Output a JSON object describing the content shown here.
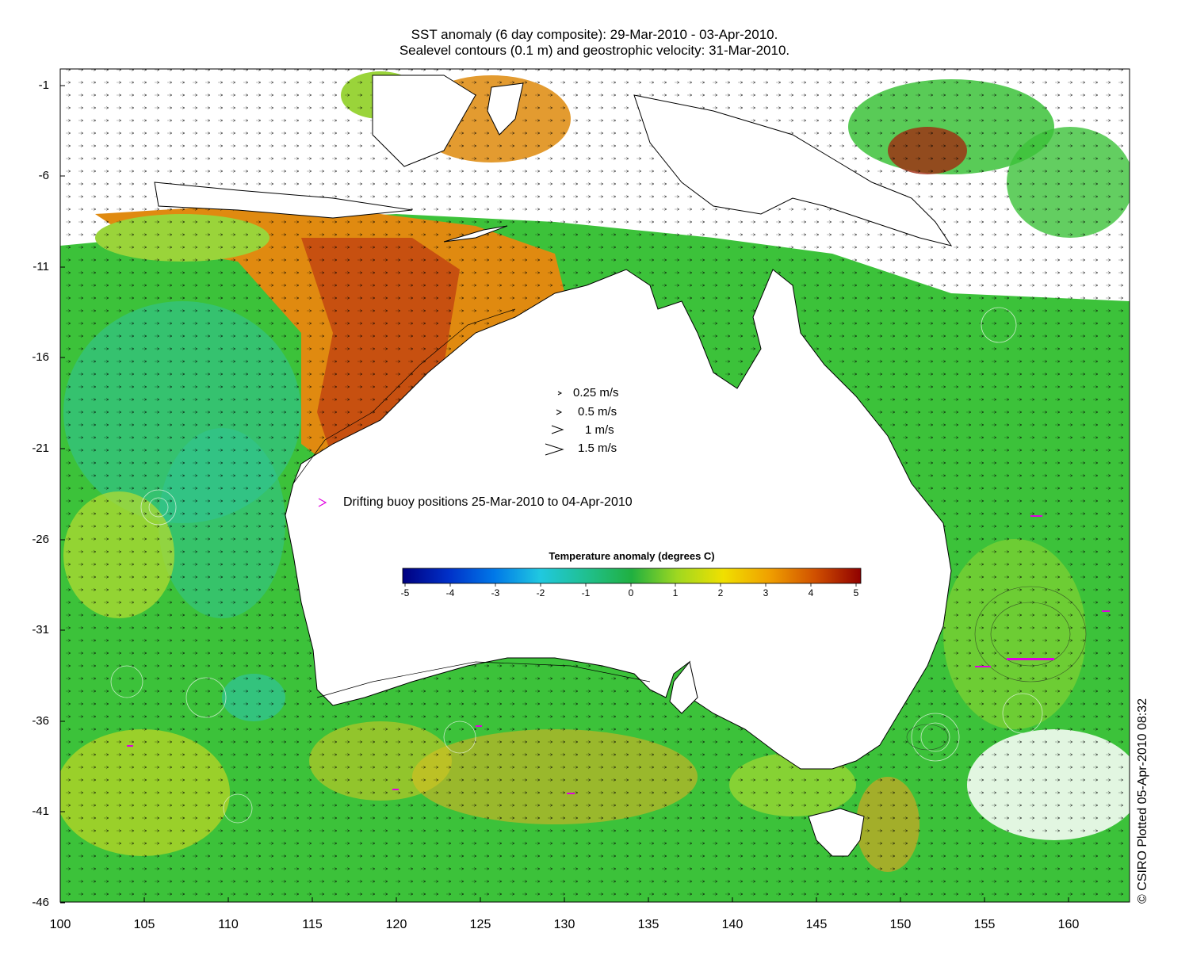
{
  "title_line1": "SST anomaly (6 day composite): 29-Mar-2010 - 03-Apr-2010.",
  "title_line2": "Sealevel contours (0.1 m) and geostrophic velocity: 31-Mar-2010.",
  "y_ticks": [
    "-1",
    "-6",
    "-11",
    "-16",
    "-21",
    "-26",
    "-31",
    "-36",
    "-41",
    "-46"
  ],
  "x_ticks": [
    "100",
    "105",
    "110",
    "115",
    "120",
    "125",
    "130",
    "135",
    "140",
    "145",
    "150",
    "155",
    "160"
  ],
  "velocity_legend": [
    "0.25 m/s",
    "0.5 m/s",
    "1 m/s",
    "1.5 m/s"
  ],
  "buoy_legend": "Drifting buoy positions 25-Mar-2010 to 04-Apr-2010",
  "colorbar": {
    "title": "Temperature anomaly (degrees C)",
    "ticks": [
      "-5",
      "-4",
      "-3",
      "-2",
      "-1",
      "0",
      "1",
      "2",
      "3",
      "4",
      "5"
    ],
    "range": [
      -5,
      5
    ]
  },
  "credit": "© CSIRO Plotted 05-Apr-2010 08:32",
  "colors": {
    "ocean_green": "#3cc23a",
    "warm_orange": "#e08a10",
    "hot_brown": "#c75010",
    "cool_teal": "#2fc39a",
    "buoy_magenta": "#e000e0"
  }
}
